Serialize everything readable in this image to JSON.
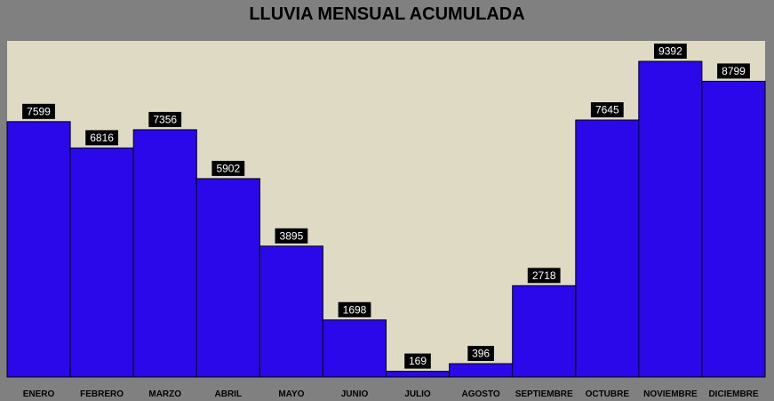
{
  "chart_data": {
    "type": "bar",
    "title": "LLUVIA MENSUAL ACUMULADA",
    "categories": [
      "ENERO",
      "FEBRERO",
      "MARZO",
      "ABRIL",
      "MAYO",
      "JUNIO",
      "JULIO",
      "AGOSTO",
      "SEPTIEMBRE",
      "OCTUBRE",
      "NOVIEMBRE",
      "DICIEMBRE"
    ],
    "series": [
      {
        "values": [
          7599,
          6816,
          7356,
          5902,
          3895,
          1698,
          169,
          396,
          2718,
          7645,
          9392,
          8799
        ]
      }
    ],
    "ylim": [
      0,
      10000
    ],
    "grid": false,
    "legend": "none",
    "colors": {
      "bar": "#2a08ea",
      "plot_background": "#dedac4",
      "chart_background": "#808080",
      "label_box": "#000000",
      "label_text": "#ffffff"
    }
  }
}
